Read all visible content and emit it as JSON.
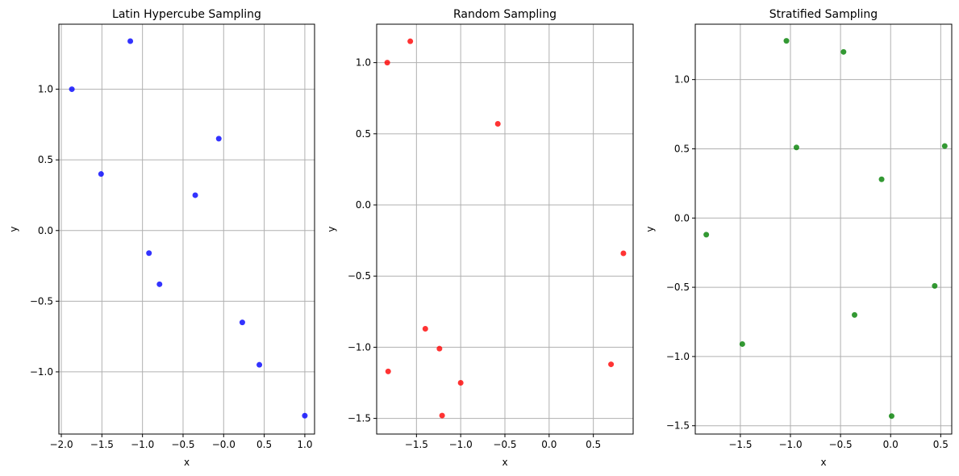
{
  "chart_data": [
    {
      "type": "scatter",
      "title": "Latin Hypercube Sampling",
      "xlabel": "x",
      "ylabel": "y",
      "xlim": [
        -2.03,
        1.12
      ],
      "ylim": [
        -1.44,
        1.46
      ],
      "xticks": [
        -2.0,
        -1.5,
        -1.0,
        -0.5,
        0.0,
        0.5,
        1.0
      ],
      "xtick_labels": [
        "−2.0",
        "−1.5",
        "−1.0",
        "−0.5",
        "−0.0",
        "0.5",
        "1.0"
      ],
      "yticks": [
        -1.0,
        -0.5,
        0.0,
        0.5,
        1.0
      ],
      "ytick_labels": [
        "−1.0",
        "−0.5",
        "0.0",
        "0.5",
        "1.0"
      ],
      "grid": true,
      "color": "#0000ff",
      "points": [
        {
          "x": -1.87,
          "y": 1.0
        },
        {
          "x": -1.15,
          "y": 1.34
        },
        {
          "x": -1.51,
          "y": 0.4
        },
        {
          "x": -0.06,
          "y": 0.65
        },
        {
          "x": -0.35,
          "y": 0.25
        },
        {
          "x": -0.92,
          "y": -0.16
        },
        {
          "x": -0.79,
          "y": -0.38
        },
        {
          "x": 0.23,
          "y": -0.65
        },
        {
          "x": 0.44,
          "y": -0.95
        },
        {
          "x": 1.0,
          "y": -1.31
        }
      ]
    },
    {
      "type": "scatter",
      "title": "Random Sampling",
      "xlabel": "x",
      "ylabel": "y",
      "xlim": [
        -1.95,
        0.95
      ],
      "ylim": [
        -1.61,
        1.27
      ],
      "xticks": [
        -1.5,
        -1.0,
        -0.5,
        0.0,
        0.5
      ],
      "xtick_labels": [
        "−1.5",
        "−1.0",
        "−0.5",
        "0.0",
        "0.5"
      ],
      "yticks": [
        -1.5,
        -1.0,
        -0.5,
        0.0,
        0.5,
        1.0
      ],
      "ytick_labels": [
        "−1.5",
        "−1.0",
        "−0.5",
        "0.0",
        "0.5",
        "1.0"
      ],
      "grid": true,
      "color": "#ff0000",
      "points": [
        {
          "x": -1.83,
          "y": 1.0
        },
        {
          "x": -1.57,
          "y": 1.15
        },
        {
          "x": -0.58,
          "y": 0.57
        },
        {
          "x": 0.84,
          "y": -0.34
        },
        {
          "x": -1.4,
          "y": -0.87
        },
        {
          "x": -1.24,
          "y": -1.01
        },
        {
          "x": -1.82,
          "y": -1.17
        },
        {
          "x": -1.0,
          "y": -1.25
        },
        {
          "x": -1.21,
          "y": -1.48
        },
        {
          "x": 0.7,
          "y": -1.12
        }
      ]
    },
    {
      "type": "scatter",
      "title": "Stratified Sampling",
      "xlabel": "x",
      "ylabel": "y",
      "xlim": [
        -1.95,
        0.61
      ],
      "ylim": [
        -1.56,
        1.4
      ],
      "xticks": [
        -1.5,
        -1.0,
        -0.5,
        0.0,
        0.5
      ],
      "xtick_labels": [
        "−1.5",
        "−1.0",
        "−0.5",
        "0.0",
        "0.5"
      ],
      "yticks": [
        -1.5,
        -1.0,
        -0.5,
        0.0,
        0.5,
        1.0
      ],
      "ytick_labels": [
        "−1.5",
        "−1.0",
        "−0.5",
        "0.0",
        "0.5",
        "1.0"
      ],
      "grid": true,
      "color": "#008000",
      "points": [
        {
          "x": -1.04,
          "y": 1.28
        },
        {
          "x": -0.47,
          "y": 1.2
        },
        {
          "x": -0.94,
          "y": 0.51
        },
        {
          "x": 0.54,
          "y": 0.52
        },
        {
          "x": -0.09,
          "y": 0.28
        },
        {
          "x": -1.84,
          "y": -0.12
        },
        {
          "x": 0.44,
          "y": -0.49
        },
        {
          "x": -0.36,
          "y": -0.7
        },
        {
          "x": -1.48,
          "y": -0.91
        },
        {
          "x": 0.01,
          "y": -1.43
        }
      ]
    }
  ]
}
